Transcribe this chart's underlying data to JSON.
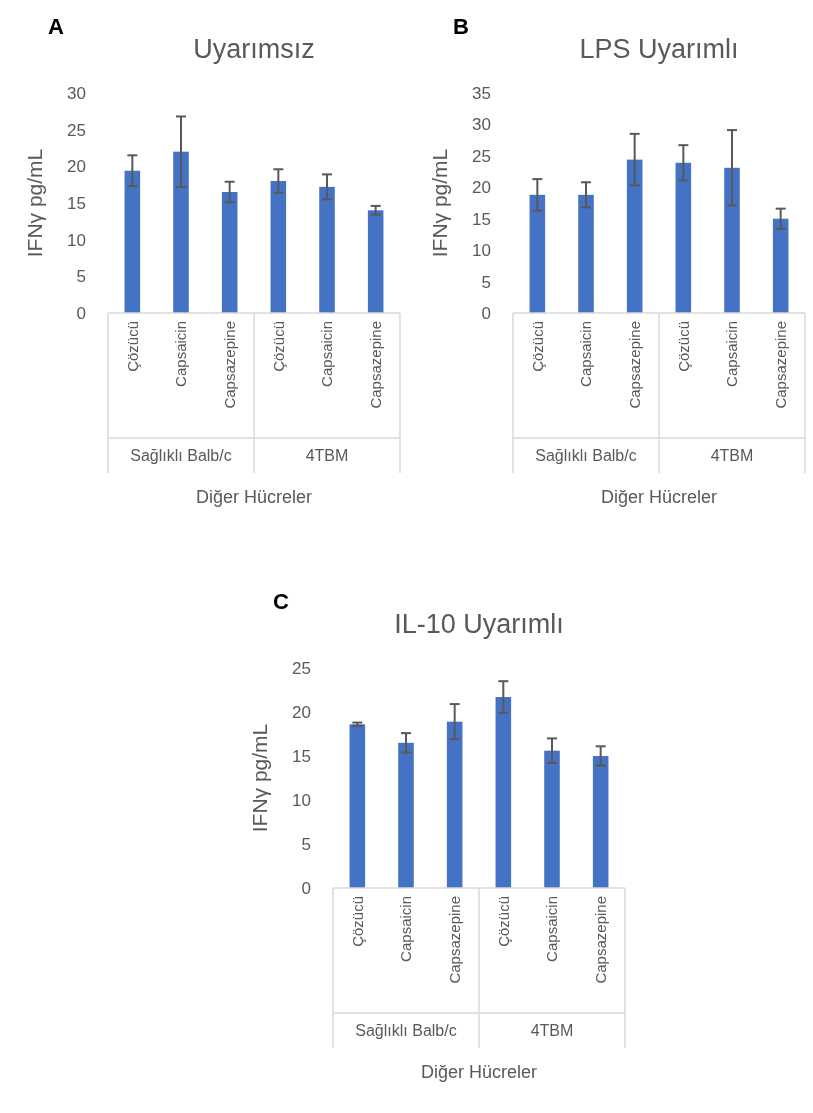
{
  "chart_data": [
    {
      "type": "bar",
      "title": "Uyarımsız",
      "xlabel": "Diğer Hücreler",
      "ylabel": "IFNγ pg/mL",
      "annotations": [
        "A",
        "Sağlıklı Balb/c",
        "4TBM"
      ],
      "categories": [
        "Çözücü",
        "Capsaicin",
        "Capsazepine",
        "Çözücü",
        "Capsaicin",
        "Capsazepine"
      ],
      "values": [
        19.4,
        22.0,
        16.5,
        18.0,
        17.2,
        14.0
      ],
      "errors": [
        2.1,
        4.8,
        1.4,
        1.6,
        1.7,
        0.6
      ],
      "color": "#4472c4",
      "ylim": [
        0,
        30
      ],
      "yticks": [
        0,
        5,
        10,
        15,
        20,
        25,
        30
      ]
    },
    {
      "type": "bar",
      "title": "LPS Uyarımlı",
      "xlabel": "Diğer Hücreler",
      "ylabel": "IFNγ pg/mL",
      "annotations": [
        "B",
        "Sağlıklı Balb/c",
        "4TBM"
      ],
      "categories": [
        "Çözücü",
        "Capsaicin",
        "Capsazepine",
        "Çözücü",
        "Capsaicin",
        "Capsazepine"
      ],
      "values": [
        18.8,
        18.8,
        24.4,
        23.9,
        23.1,
        15.0
      ],
      "errors": [
        2.5,
        2.0,
        4.1,
        2.8,
        6.0,
        1.6
      ],
      "color": "#4472c4",
      "ylim": [
        0,
        35
      ],
      "yticks": [
        0,
        5,
        10,
        15,
        20,
        25,
        30,
        35
      ]
    },
    {
      "type": "bar",
      "title": "IL-10 Uyarımlı",
      "xlabel": "Diğer Hücreler",
      "ylabel": "IFNγ pg/mL",
      "annotations": [
        "C",
        "Sağlıklı Balb/c",
        "4TBM"
      ],
      "categories": [
        "Çözücü",
        "Capsaicin",
        "Capsazepine",
        "Çözücü",
        "Capsaicin",
        "Capsazepine"
      ],
      "values": [
        18.6,
        16.5,
        18.9,
        21.7,
        15.6,
        15.0
      ],
      "errors": [
        0.2,
        1.1,
        2.0,
        1.8,
        1.4,
        1.1
      ],
      "color": "#4472c4",
      "ylim": [
        0,
        25
      ],
      "yticks": [
        0,
        5,
        10,
        15,
        20,
        25
      ]
    }
  ]
}
